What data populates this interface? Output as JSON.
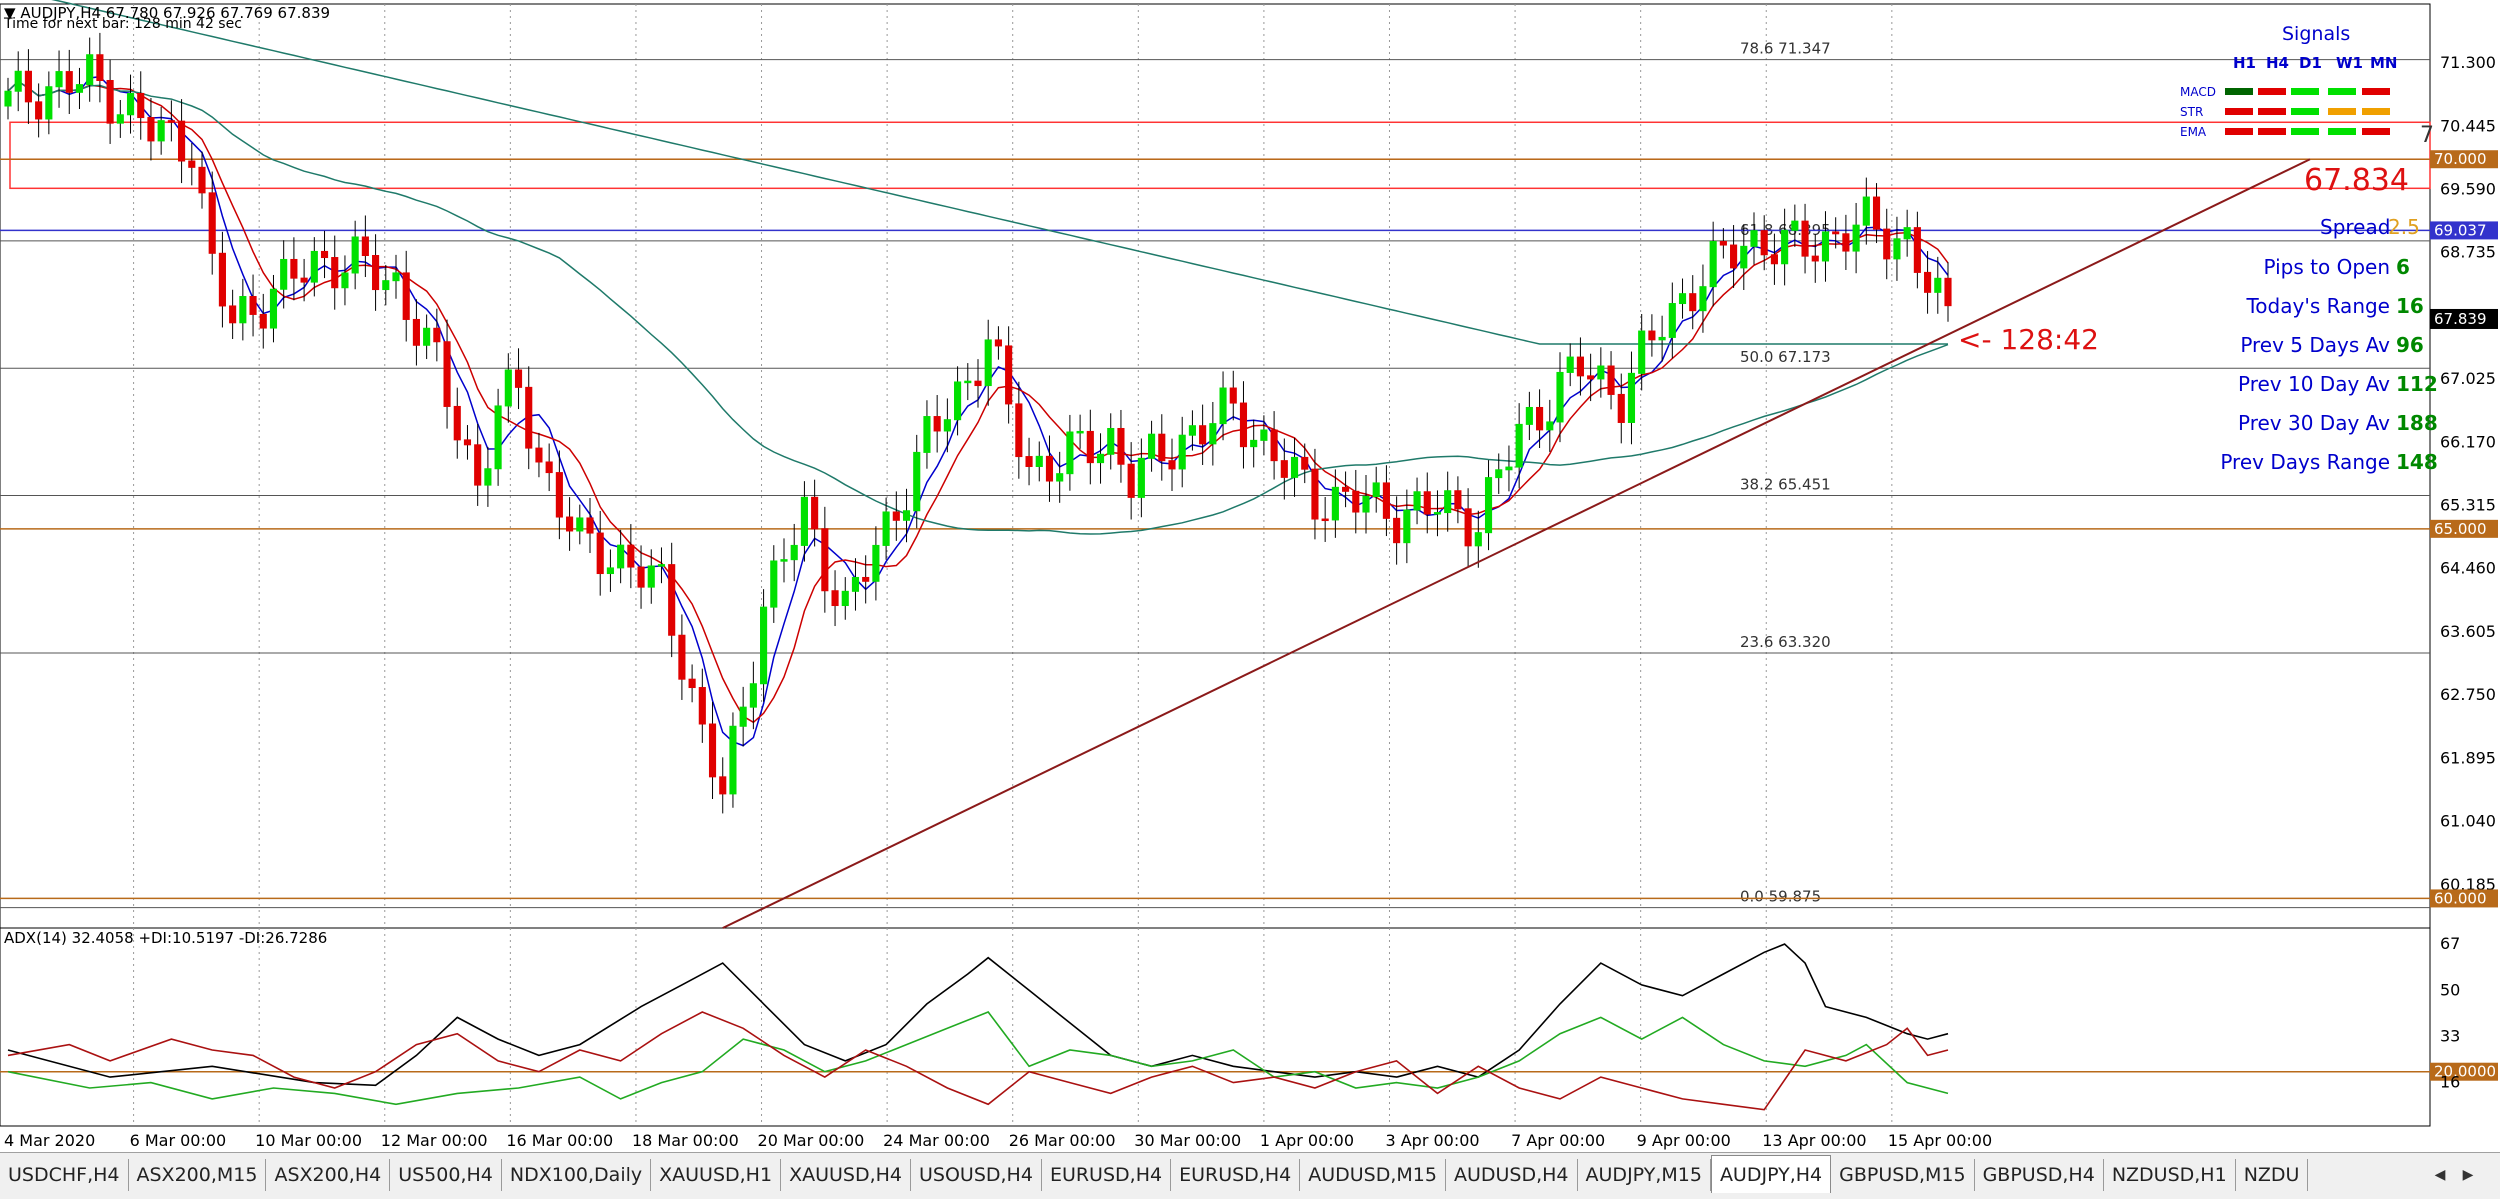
{
  "header": {
    "symbol_line": "AUDJPY,H4  67.780 67.926 67.769 67.839",
    "timer_line": "Time for next bar: 128 min 42 sec"
  },
  "indicator": {
    "label": "ADX(14) 32.4058 +DI:10.5197 -DI:26.7286"
  },
  "colors": {
    "bull": "#00e000",
    "bear": "#e00000",
    "fast_ma": "#0000cc",
    "mid_ma": "#cc0000",
    "slow_ma": "#1f7a6a",
    "trend": "#8b1a1a",
    "fib": "#555555",
    "level": "#b86a1a",
    "adx": "#000000",
    "plus_di": "#22aa22",
    "minus_di": "#aa1111",
    "panel_blue": "#0000cc"
  },
  "chart_data": [
    {
      "type": "candlestick",
      "symbol": "AUDJPY",
      "timeframe": "H4",
      "ylim": [
        59.6,
        72.1
      ],
      "y_ticks": [
        "71.300",
        "70.445",
        "69.590",
        "68.735",
        "67.025",
        "66.170",
        "65.315",
        "64.460",
        "63.605",
        "62.750",
        "61.895",
        "61.040",
        "60.185"
      ],
      "x_ticks": [
        "4 Mar 2020",
        "6 Mar 00:00",
        "10 Mar 00:00",
        "12 Mar 00:00",
        "16 Mar 00:00",
        "18 Mar 00:00",
        "20 Mar 00:00",
        "24 Mar 00:00",
        "26 Mar 00:00",
        "30 Mar 00:00",
        "1 Apr 00:00",
        "3 Apr 00:00",
        "7 Apr 00:00",
        "9 Apr 00:00",
        "13 Apr 00:00",
        "15 Apr 00:00"
      ],
      "price_anchors": [
        [
          0,
          70.8
        ],
        [
          8,
          71.1
        ],
        [
          14,
          70.4
        ],
        [
          18,
          70.2
        ],
        [
          20,
          68.5
        ],
        [
          22,
          67.8
        ],
        [
          26,
          68.2
        ],
        [
          30,
          68.6
        ],
        [
          34,
          68.6
        ],
        [
          38,
          68.3
        ],
        [
          42,
          67.2
        ],
        [
          46,
          65.6
        ],
        [
          48,
          66.6
        ],
        [
          50,
          66.9
        ],
        [
          52,
          65.9
        ],
        [
          56,
          64.8
        ],
        [
          60,
          64.6
        ],
        [
          64,
          64.2
        ],
        [
          66,
          63.3
        ],
        [
          68,
          62.2
        ],
        [
          70,
          61.4
        ],
        [
          72,
          62.6
        ],
        [
          74,
          64.0
        ],
        [
          78,
          65.2
        ],
        [
          80,
          64.5
        ],
        [
          82,
          63.9
        ],
        [
          86,
          65.0
        ],
        [
          90,
          66.2
        ],
        [
          94,
          67.0
        ],
        [
          96,
          67.6
        ],
        [
          98,
          66.6
        ],
        [
          100,
          65.8
        ],
        [
          104,
          66.0
        ],
        [
          108,
          66.2
        ],
        [
          110,
          65.7
        ],
        [
          112,
          65.9
        ],
        [
          116,
          66.3
        ],
        [
          120,
          66.6
        ],
        [
          124,
          66.0
        ],
        [
          128,
          65.4
        ],
        [
          132,
          65.4
        ],
        [
          136,
          65.2
        ],
        [
          140,
          65.3
        ],
        [
          144,
          65.1
        ],
        [
          148,
          66.3
        ],
        [
          150,
          66.6
        ],
        [
          154,
          67.2
        ],
        [
          156,
          67.0
        ],
        [
          158,
          66.8
        ],
        [
          162,
          67.8
        ],
        [
          166,
          68.4
        ],
        [
          170,
          68.9
        ],
        [
          174,
          68.8
        ],
        [
          178,
          68.9
        ],
        [
          182,
          69.1
        ],
        [
          186,
          68.9
        ],
        [
          188,
          68.3
        ],
        [
          190,
          67.839
        ]
      ],
      "ma_periods": [
        5,
        8,
        55,
        200
      ],
      "fib_levels": [
        {
          "pct": "78.6",
          "price": 71.347,
          "label": "78.6  71.347"
        },
        {
          "pct": "61.8",
          "price": 68.895,
          "label": "61.8  68.895"
        },
        {
          "pct": "50.0",
          "price": 67.173,
          "label": "50.0  67.173"
        },
        {
          "pct": "38.2",
          "price": 65.451,
          "label": "38.2  65.451"
        },
        {
          "pct": "23.6",
          "price": 63.32,
          "label": "23.6  63.320"
        },
        {
          "pct": "0.0",
          "price": 59.875,
          "label": "0.0  59.875"
        }
      ],
      "horizontal_levels": [
        {
          "price": 70.0,
          "label": "70.000",
          "color": "#b86a1a"
        },
        {
          "price": 69.037,
          "label": "69.037",
          "color": "#3333cc"
        },
        {
          "price": 65.0,
          "label": "65.000",
          "color": "#b86a1a"
        },
        {
          "price": 60.0,
          "label": "60.000",
          "color": "#b86a1a"
        }
      ],
      "current_price": {
        "price": 67.839,
        "label": "67.839"
      },
      "resistance_zone": [
        69.85,
        70.5
      ],
      "trendline": {
        "from_bar": 70,
        "from_price": 59.6,
        "to_bar": 240,
        "to_price": 70.0
      },
      "countdown": "<- 128:42",
      "zone_edge_label": "7"
    },
    {
      "type": "line",
      "name": "ADX(14)",
      "ylim": [
        0,
        70
      ],
      "y_ticks": [
        "67",
        "50",
        "33",
        "16"
      ],
      "threshold": {
        "value": 20,
        "label": "20.0000"
      },
      "series": [
        {
          "name": "ADX",
          "anchors": [
            [
              0,
              28
            ],
            [
              10,
              18
            ],
            [
              20,
              22
            ],
            [
              30,
              16
            ],
            [
              36,
              15
            ],
            [
              40,
              26
            ],
            [
              44,
              40
            ],
            [
              48,
              32
            ],
            [
              52,
              26
            ],
            [
              56,
              30
            ],
            [
              62,
              44
            ],
            [
              66,
              52
            ],
            [
              70,
              60
            ],
            [
              74,
              45
            ],
            [
              78,
              30
            ],
            [
              82,
              24
            ],
            [
              86,
              30
            ],
            [
              90,
              45
            ],
            [
              94,
              56
            ],
            [
              96,
              62
            ],
            [
              100,
              50
            ],
            [
              104,
              38
            ],
            [
              108,
              26
            ],
            [
              112,
              22
            ],
            [
              116,
              26
            ],
            [
              120,
              22
            ],
            [
              124,
              20
            ],
            [
              128,
              18
            ],
            [
              132,
              20
            ],
            [
              136,
              18
            ],
            [
              140,
              22
            ],
            [
              144,
              18
            ],
            [
              148,
              28
            ],
            [
              152,
              45
            ],
            [
              156,
              60
            ],
            [
              160,
              52
            ],
            [
              164,
              48
            ],
            [
              168,
              56
            ],
            [
              172,
              64
            ],
            [
              174,
              67
            ],
            [
              176,
              60
            ],
            [
              178,
              44
            ],
            [
              182,
              40
            ],
            [
              186,
              34
            ],
            [
              188,
              32
            ],
            [
              190,
              34
            ]
          ]
        },
        {
          "name": "+DI",
          "anchors": [
            [
              0,
              20
            ],
            [
              8,
              14
            ],
            [
              14,
              16
            ],
            [
              20,
              10
            ],
            [
              26,
              14
            ],
            [
              32,
              12
            ],
            [
              38,
              8
            ],
            [
              44,
              12
            ],
            [
              50,
              14
            ],
            [
              56,
              18
            ],
            [
              60,
              10
            ],
            [
              64,
              16
            ],
            [
              68,
              20
            ],
            [
              72,
              32
            ],
            [
              76,
              28
            ],
            [
              80,
              20
            ],
            [
              84,
              24
            ],
            [
              88,
              30
            ],
            [
              92,
              36
            ],
            [
              96,
              42
            ],
            [
              100,
              22
            ],
            [
              104,
              28
            ],
            [
              108,
              26
            ],
            [
              112,
              22
            ],
            [
              116,
              24
            ],
            [
              120,
              28
            ],
            [
              124,
              18
            ],
            [
              128,
              20
            ],
            [
              132,
              14
            ],
            [
              136,
              16
            ],
            [
              140,
              14
            ],
            [
              144,
              18
            ],
            [
              148,
              24
            ],
            [
              152,
              34
            ],
            [
              156,
              40
            ],
            [
              160,
              32
            ],
            [
              164,
              40
            ],
            [
              168,
              30
            ],
            [
              172,
              24
            ],
            [
              176,
              22
            ],
            [
              180,
              26
            ],
            [
              182,
              30
            ],
            [
              186,
              16
            ],
            [
              190,
              12
            ]
          ]
        },
        {
          "name": "-DI",
          "anchors": [
            [
              0,
              26
            ],
            [
              6,
              30
            ],
            [
              10,
              24
            ],
            [
              16,
              32
            ],
            [
              20,
              28
            ],
            [
              24,
              26
            ],
            [
              28,
              18
            ],
            [
              32,
              14
            ],
            [
              36,
              20
            ],
            [
              40,
              30
            ],
            [
              44,
              34
            ],
            [
              48,
              24
            ],
            [
              52,
              20
            ],
            [
              56,
              28
            ],
            [
              60,
              24
            ],
            [
              64,
              34
            ],
            [
              68,
              42
            ],
            [
              72,
              36
            ],
            [
              76,
              26
            ],
            [
              80,
              18
            ],
            [
              84,
              28
            ],
            [
              88,
              22
            ],
            [
              92,
              14
            ],
            [
              96,
              8
            ],
            [
              100,
              20
            ],
            [
              104,
              16
            ],
            [
              108,
              12
            ],
            [
              112,
              18
            ],
            [
              116,
              22
            ],
            [
              120,
              16
            ],
            [
              124,
              18
            ],
            [
              128,
              14
            ],
            [
              132,
              20
            ],
            [
              136,
              24
            ],
            [
              140,
              12
            ],
            [
              144,
              22
            ],
            [
              148,
              14
            ],
            [
              152,
              10
            ],
            [
              156,
              18
            ],
            [
              160,
              14
            ],
            [
              164,
              10
            ],
            [
              168,
              8
            ],
            [
              172,
              6
            ],
            [
              176,
              28
            ],
            [
              180,
              24
            ],
            [
              184,
              30
            ],
            [
              186,
              36
            ],
            [
              188,
              26
            ],
            [
              190,
              28
            ]
          ]
        }
      ]
    }
  ],
  "signals": {
    "title": "Signals",
    "timeframes": [
      "H1",
      "H4",
      "D1",
      "W1",
      "MN"
    ],
    "rows": [
      {
        "name": "MACD",
        "cells": [
          "#006400",
          "#e00000",
          "#00e000",
          "#00e000",
          "#e00000"
        ]
      },
      {
        "name": "STR",
        "cells": [
          "#e00000",
          "#e00000",
          "#00e000",
          "#f0a000",
          "#f0a000"
        ]
      },
      {
        "name": "EMA",
        "cells": [
          "#e00000",
          "#e00000",
          "#00e000",
          "#00e000",
          "#e00000"
        ]
      }
    ]
  },
  "stats": {
    "big_price": "67.834",
    "spread_label": "Spread",
    "spread_value": "2.5",
    "rows": [
      {
        "label": "Pips to Open",
        "value": "6"
      },
      {
        "label": "Today's Range",
        "value": "16"
      },
      {
        "label": "Prev 5 Days Av",
        "value": "96"
      },
      {
        "label": "Prev 10 Day Av",
        "value": "112"
      },
      {
        "label": "Prev 30 Day Av",
        "value": "188"
      },
      {
        "label": "Prev Days Range",
        "value": "148"
      }
    ]
  },
  "tabs": [
    {
      "label": "USDCHF,H4",
      "active": false
    },
    {
      "label": "ASX200,M15",
      "active": false
    },
    {
      "label": "ASX200,H4",
      "active": false
    },
    {
      "label": "US500,H4",
      "active": false
    },
    {
      "label": "NDX100,Daily",
      "active": false
    },
    {
      "label": "XAUUSD,H1",
      "active": false
    },
    {
      "label": "XAUUSD,H4",
      "active": false
    },
    {
      "label": "USOUSD,H4",
      "active": false
    },
    {
      "label": "EURUSD,H4",
      "active": false
    },
    {
      "label": "EURUSD,H4",
      "active": false
    },
    {
      "label": "AUDUSD,M15",
      "active": false
    },
    {
      "label": "AUDUSD,H4",
      "active": false
    },
    {
      "label": "AUDJPY,M15",
      "active": false
    },
    {
      "label": "AUDJPY,H4",
      "active": true
    },
    {
      "label": "GBPUSD,M15",
      "active": false
    },
    {
      "label": "GBPUSD,H4",
      "active": false
    },
    {
      "label": "NZDUSD,H1",
      "active": false
    },
    {
      "label": "NZDU",
      "active": false
    }
  ]
}
